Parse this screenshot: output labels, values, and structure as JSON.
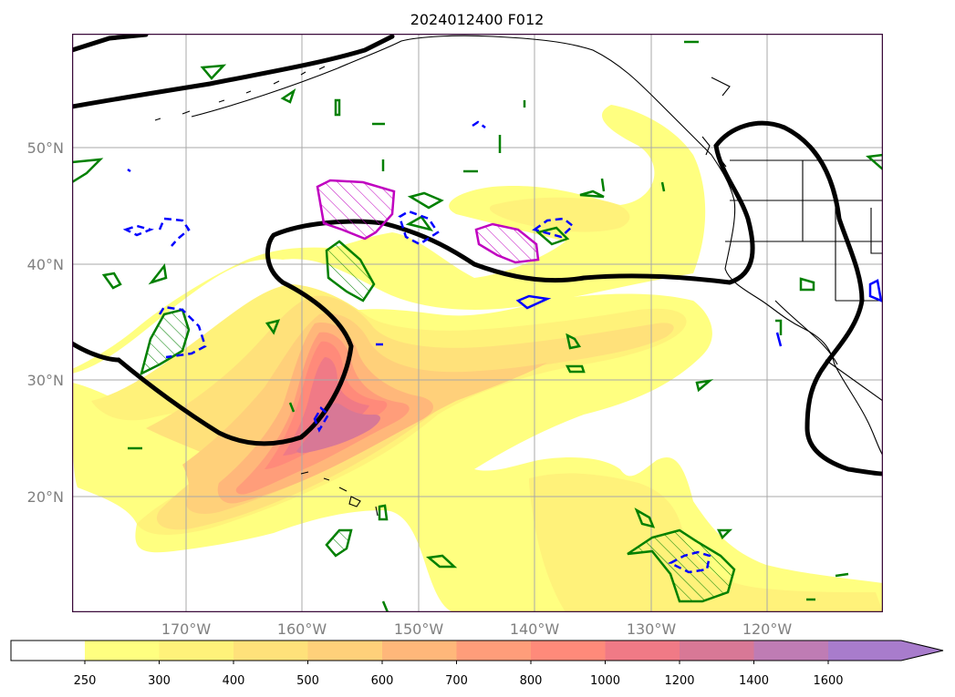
{
  "map": {
    "title": "2024012400 F012",
    "lat_labels": [
      "50°N",
      "40°N",
      "30°N",
      "20°N"
    ],
    "lon_labels": [
      "170°W",
      "160°W",
      "150°W",
      "140°W",
      "130°W",
      "120°W"
    ],
    "colors": {
      "frame": "#3a0a3a",
      "grid": "#a8a8a8",
      "contour_black": "#000000",
      "contour_green": "#008000",
      "contour_blue": "#0000ff",
      "contour_magenta": "#c000c0",
      "land_border": "#000000"
    },
    "shading_levels": [
      {
        "label": "250",
        "color": "#ffff80"
      },
      {
        "label": "300",
        "color": "#fff27a"
      },
      {
        "label": "400",
        "color": "#ffe17a"
      },
      {
        "label": "500",
        "color": "#ffd07a"
      },
      {
        "label": "600",
        "color": "#ffb77a"
      },
      {
        "label": "700",
        "color": "#ff9d7a"
      },
      {
        "label": "800",
        "color": "#ff8a7a"
      },
      {
        "label": "1000",
        "color": "#f07a86"
      },
      {
        "label": "1200",
        "color": "#d87896"
      },
      {
        "label": "1400",
        "color": "#bf7cb4"
      },
      {
        "label": "1600",
        "color": "#a87ccc"
      }
    ]
  },
  "colorbar": {
    "tick_labels": [
      "250",
      "300",
      "400",
      "500",
      "600",
      "700",
      "800",
      "1000",
      "1200",
      "1400",
      "1600"
    ],
    "under_color": "#ffffff",
    "extend": "max"
  }
}
